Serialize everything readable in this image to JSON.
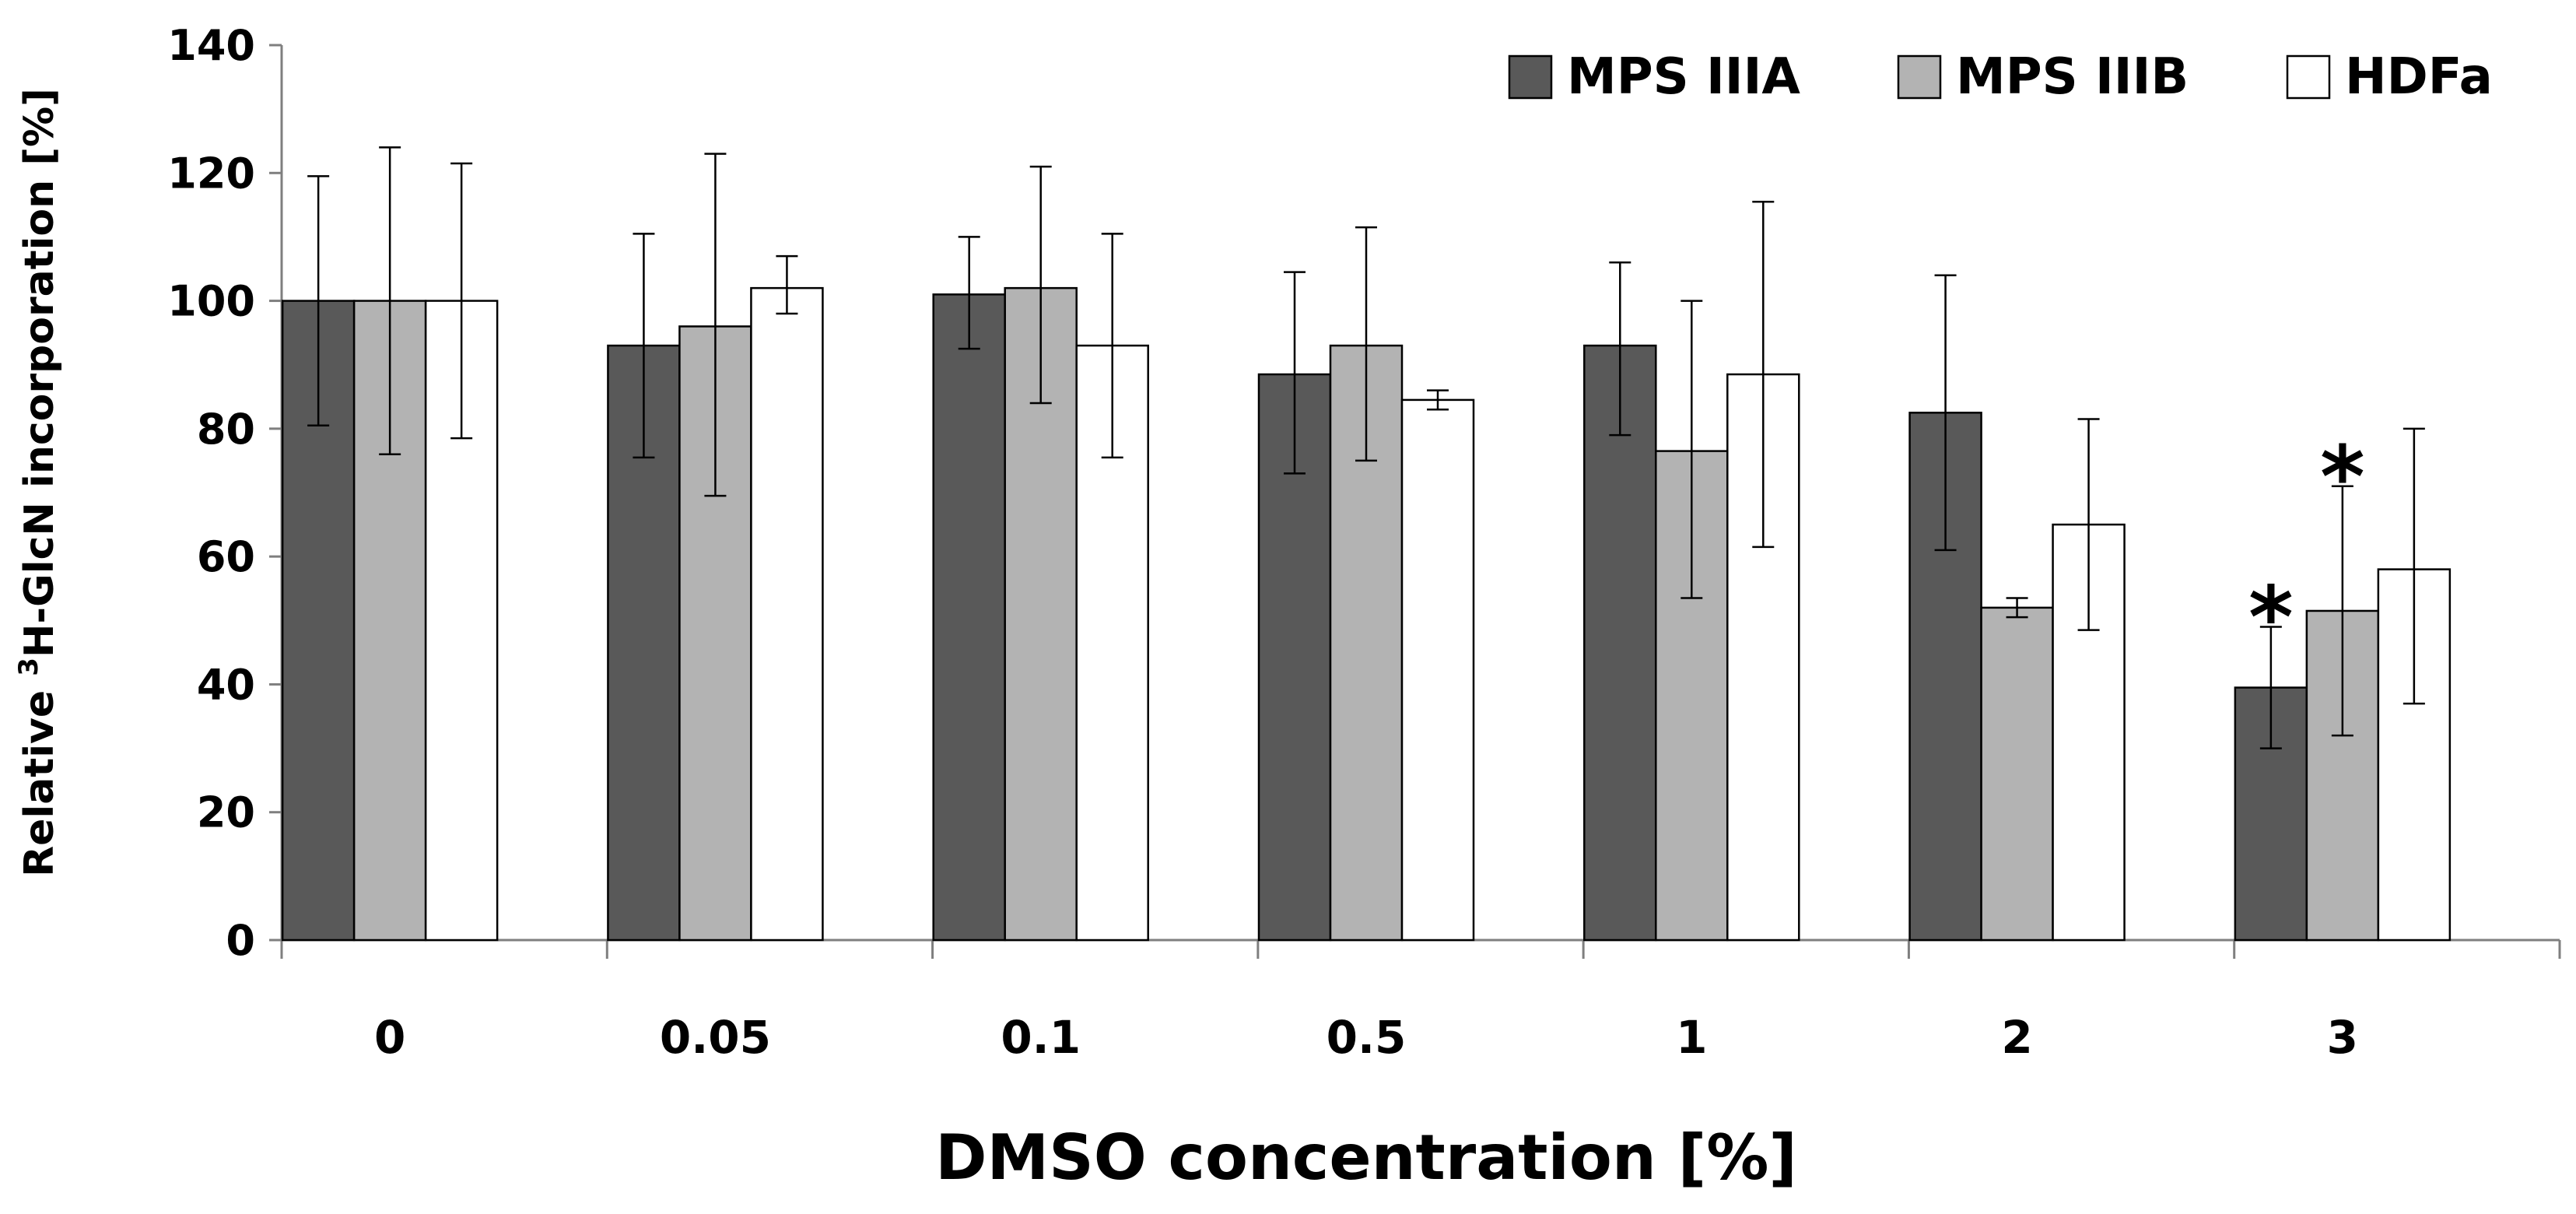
{
  "chart_data": {
    "type": "bar",
    "title": "",
    "xlabel": "DMSO concentration [%]",
    "ylabel_prefix": "Relative ",
    "ylabel_superscript": "3",
    "ylabel_suffix": "H-GlcN incorporation [%]",
    "ylim": [
      0,
      140
    ],
    "yticks": [
      0,
      20,
      40,
      60,
      80,
      100,
      120,
      140
    ],
    "grid": false,
    "legend_position": "top-right",
    "categories": [
      "0",
      "0.05",
      "0.1",
      "0.5",
      "1",
      "2",
      "3"
    ],
    "series": [
      {
        "name": "MPS IIIA",
        "color": "#595959",
        "values": [
          100,
          93,
          101,
          88.5,
          93,
          82.5,
          39.5
        ],
        "err_low": [
          80.5,
          75.5,
          92.5,
          73,
          79,
          61,
          30
        ],
        "err_high": [
          119.5,
          110.5,
          110,
          104.5,
          106,
          104,
          49
        ]
      },
      {
        "name": "MPS IIIB",
        "color": "#b3b3b3",
        "values": [
          100,
          96,
          102,
          93,
          76.5,
          52,
          51.5
        ],
        "err_low": [
          76,
          69.5,
          84,
          75,
          53.5,
          50.5,
          32
        ],
        "err_high": [
          124,
          123,
          121,
          111.5,
          100,
          53.5,
          71
        ]
      },
      {
        "name": "HDFa",
        "color": "#ffffff",
        "values": [
          100,
          102,
          93,
          84.5,
          88.5,
          65,
          58
        ],
        "err_low": [
          78.5,
          98,
          75.5,
          83,
          61.5,
          48.5,
          37
        ],
        "err_high": [
          121.5,
          107,
          110.5,
          86,
          115.5,
          81.5,
          80
        ]
      }
    ],
    "annotations": [
      {
        "text": "*",
        "category": "3",
        "series": "MPS IIIA"
      },
      {
        "text": "*",
        "category": "3",
        "series": "MPS IIIB"
      }
    ]
  }
}
